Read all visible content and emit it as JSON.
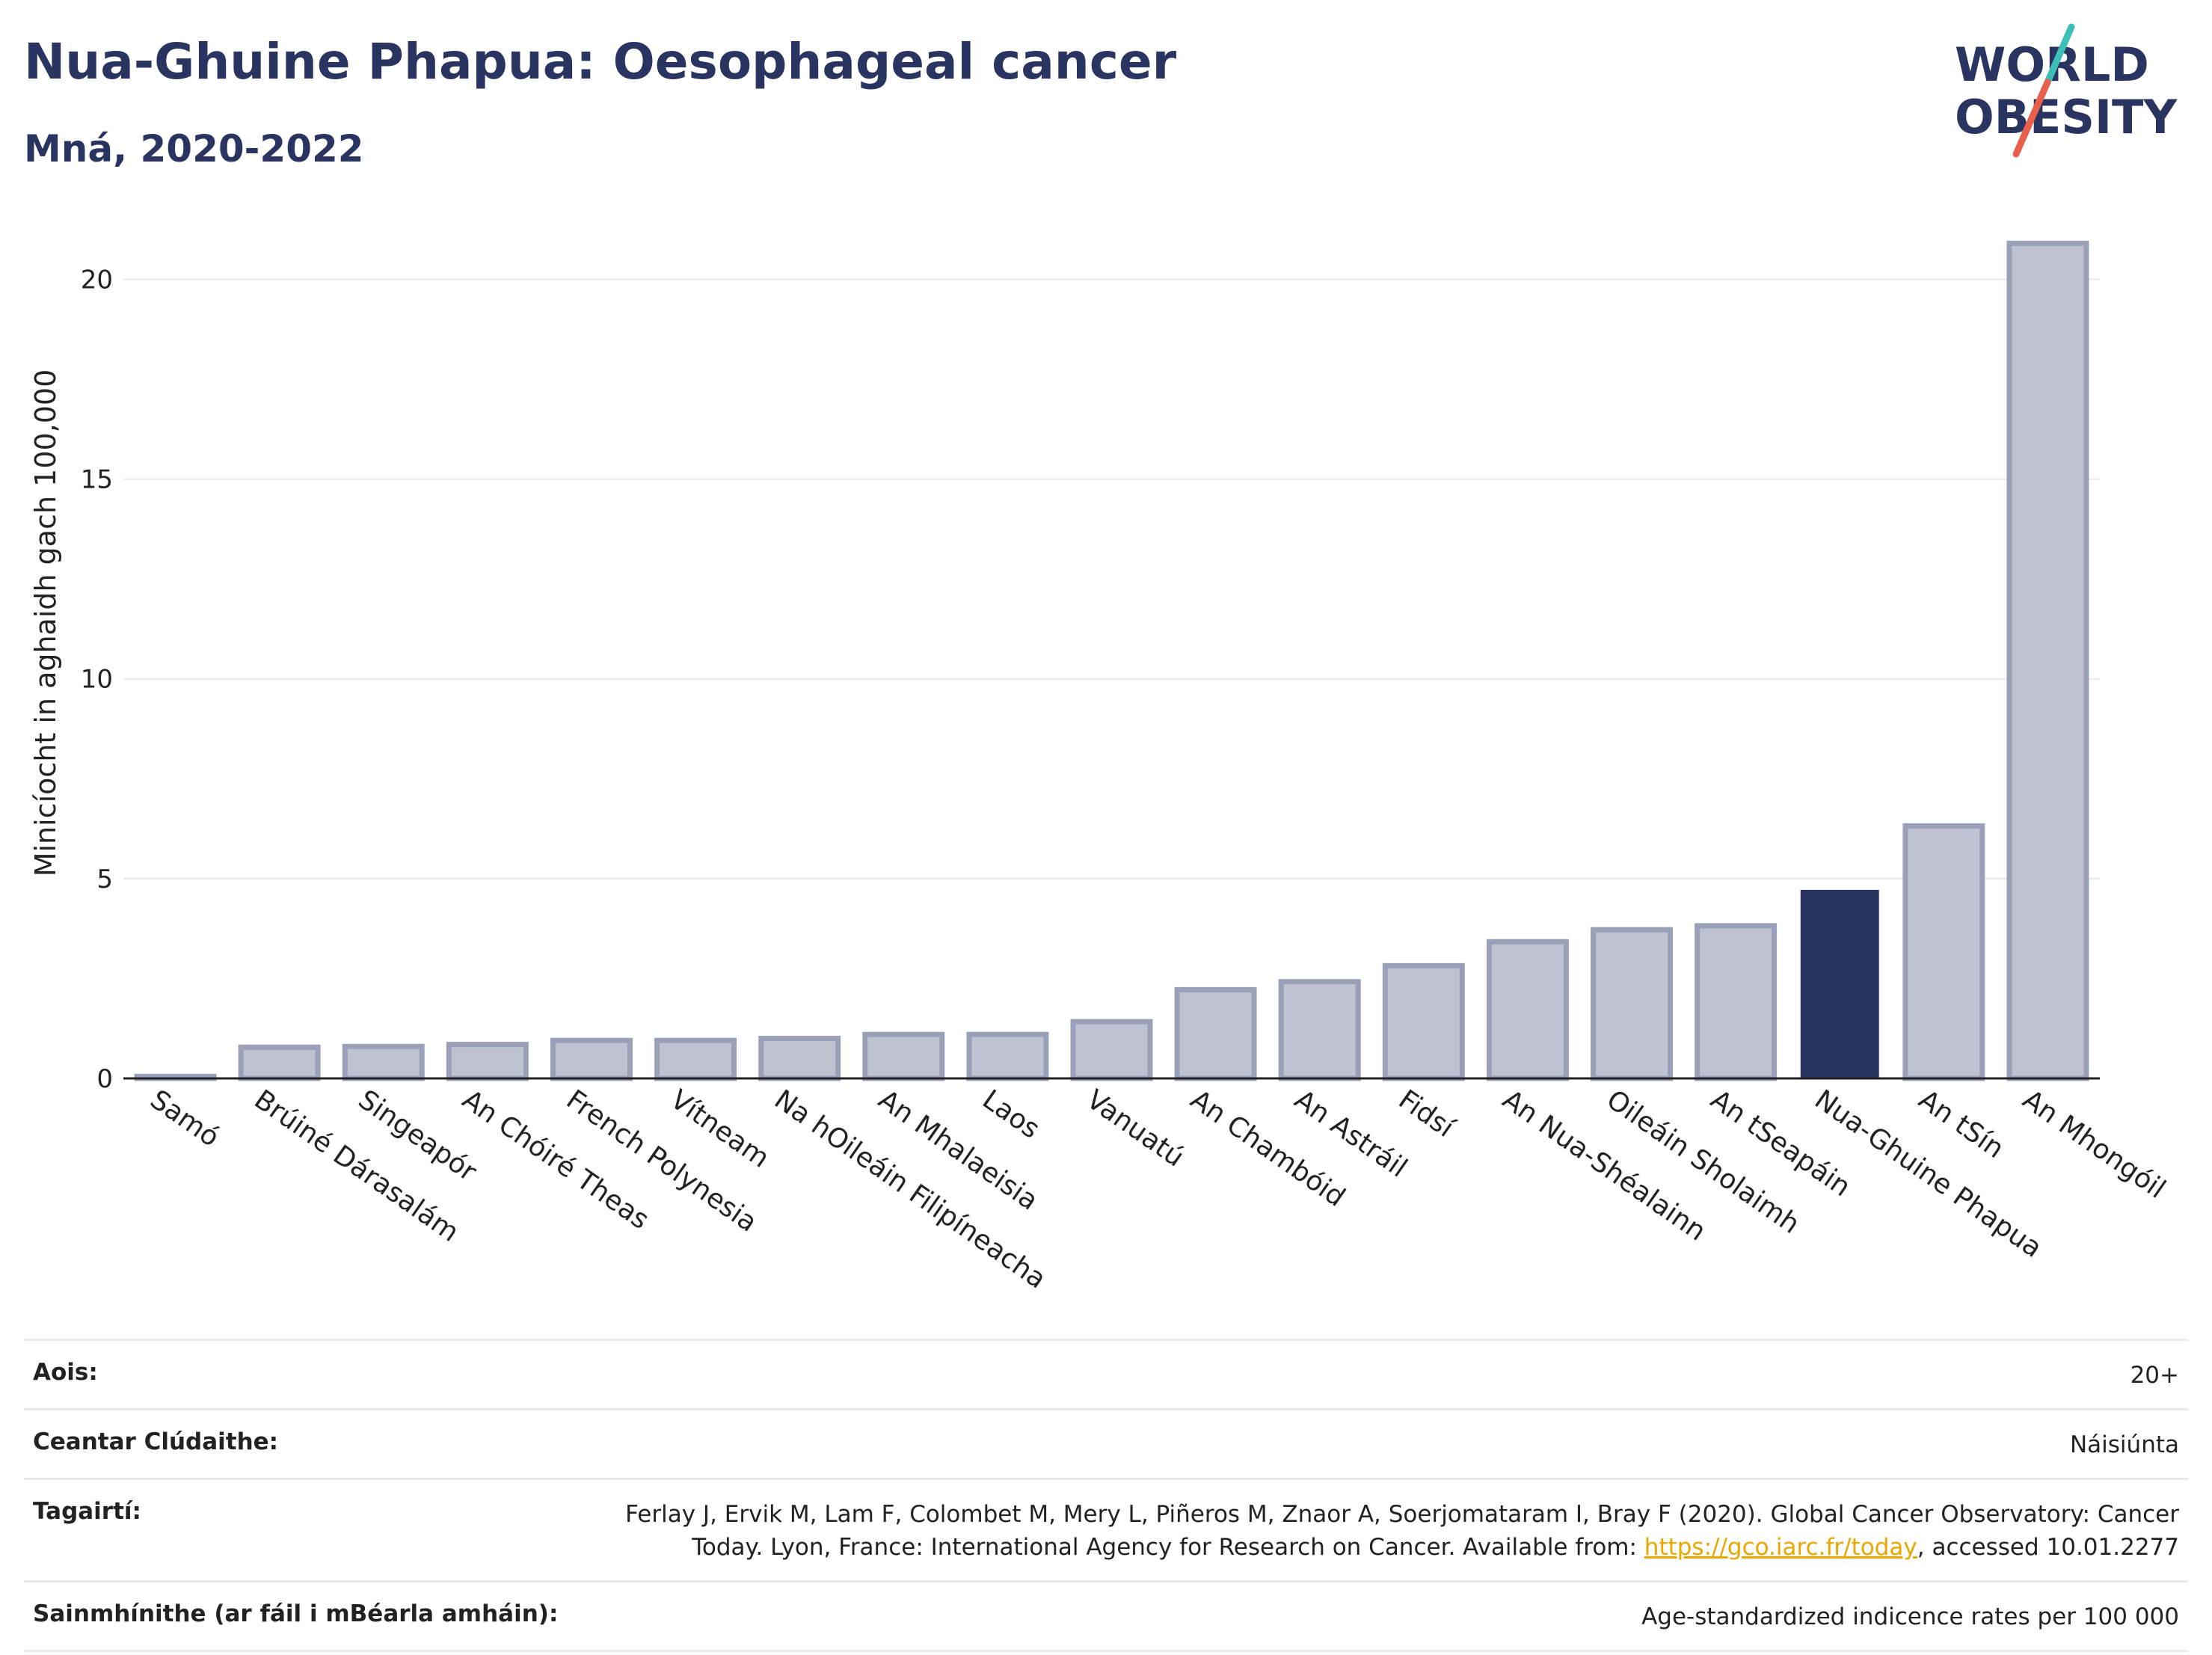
{
  "header": {
    "title": "Nua-Ghuine Phapua: Oesophageal cancer",
    "subtitle": "Mná, 2020-2022"
  },
  "logo": {
    "line1": "WORLD",
    "line2": "OBESITY",
    "slash_colors": [
      "#e8604c",
      "#3dbfb8"
    ],
    "text_color": "#2a3460"
  },
  "chart_data": {
    "type": "bar",
    "ylabel": "Minicíocht in aghaidh gach 100,000",
    "xlabel": "",
    "ylim": [
      0,
      21
    ],
    "yticks": [
      0,
      5,
      10,
      15,
      20
    ],
    "grid": true,
    "categories": [
      "Samó",
      "Brúiné Dárasalám",
      "Singeapór",
      "An Chóiré Theas",
      "French Polynesia",
      "Vítneam",
      "Na hOileáin Filipíneacha",
      "An Mhalaeisia",
      "Laos",
      "Vanuatú",
      "An Chambóid",
      "An Astráil",
      "Fidsí",
      "An Nua-Shéalainn",
      "Oileáin Sholaimh",
      "An tSeapáin",
      "Nua-Ghuine Phapua",
      "An tSín",
      "An Mhongóil"
    ],
    "values": [
      0.05,
      0.78,
      0.8,
      0.85,
      0.95,
      0.95,
      1.0,
      1.1,
      1.1,
      1.42,
      2.22,
      2.42,
      2.82,
      3.42,
      3.72,
      3.82,
      4.7,
      6.32,
      20.9
    ],
    "highlight": "Nua-Ghuine Phapua",
    "colors": {
      "bar": "#bfc3d1",
      "bar_edge": "#9aa0b8",
      "highlight": "#2a3460"
    }
  },
  "meta": [
    {
      "key": "Aois:",
      "value": "20+"
    },
    {
      "key": "Ceantar Clúdaithe:",
      "value": "Náisiúnta"
    },
    {
      "key": "Tagairtí:",
      "value_pre": "Ferlay J, Ervik M, Lam F, Colombet M, Mery L, Piñeros M, Znaor A, Soerjomataram I, Bray F (2020). Global Cancer Observatory: Cancer Today. Lyon, France: International Agency for Research on Cancer. Available from: ",
      "link": "https://gco.iarc.fr/today",
      "value_post": ", accessed 10.01.2277"
    },
    {
      "key": "Sainmhínithe (ar fáil i mBéarla amháin):",
      "value": "Age-standardized indicence rates per 100 000"
    }
  ]
}
